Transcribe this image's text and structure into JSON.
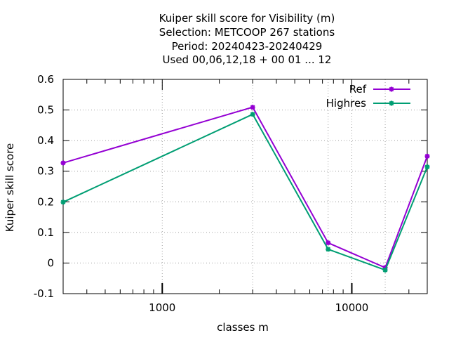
{
  "chart_data": {
    "type": "line",
    "title_lines": [
      "Kuiper skill score  for Visibility (m)",
      "Selection: METCOOP    267 stations",
      "Period: 20240423-20240429",
      "Used  00,06,12,18 + 00 01 ... 12"
    ],
    "xlabel": "classes m",
    "ylabel": "Kuiper skill score",
    "x_scale": "log",
    "xlim": [
      300,
      25000
    ],
    "ylim": [
      -0.1,
      0.6
    ],
    "y_ticks": [
      -0.1,
      0,
      0.1,
      0.2,
      0.3,
      0.4,
      0.5,
      0.6
    ],
    "y_tick_labels": [
      "-0.1",
      "0",
      "0.1",
      "0.2",
      "0.3",
      "0.4",
      "0.5",
      "0.6"
    ],
    "x_ticks": [
      1000,
      10000
    ],
    "x_tick_labels": [
      "1000",
      "10000"
    ],
    "grid": true,
    "legend_position": "top-right",
    "series": [
      {
        "name": "Ref",
        "color": "#9400d3",
        "x": [
          300,
          3000,
          7500,
          15000,
          25000
        ],
        "y": [
          0.327,
          0.509,
          0.066,
          -0.015,
          0.349
        ]
      },
      {
        "name": "Highres",
        "color": "#009e73",
        "x": [
          300,
          3000,
          7500,
          15000,
          25000
        ],
        "y": [
          0.199,
          0.486,
          0.045,
          -0.023,
          0.314
        ]
      }
    ]
  }
}
